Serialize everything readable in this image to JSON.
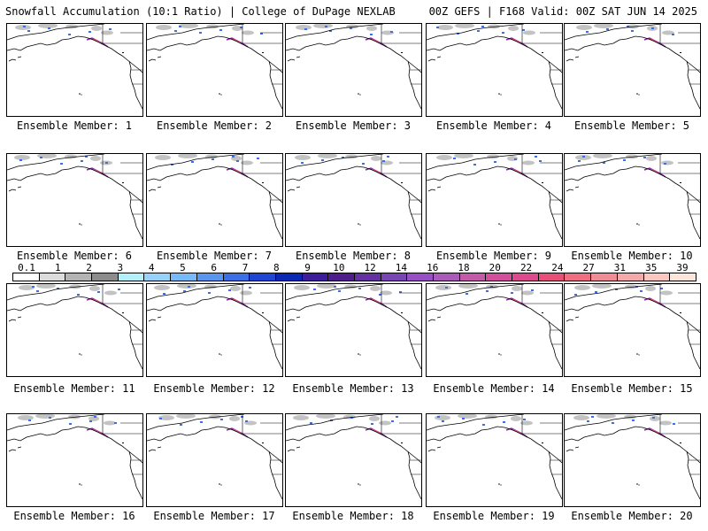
{
  "header": {
    "title_left": "Snowfall Accumulation (10:1 Ratio) | College of DuPage NEXLAB",
    "title_right": "00Z GEFS | F168 Valid: 00Z SAT JUN 14 2025"
  },
  "panels": [
    {
      "member": 1,
      "label": "Ensemble Member: 1"
    },
    {
      "member": 2,
      "label": "Ensemble Member: 2"
    },
    {
      "member": 3,
      "label": "Ensemble Member: 3"
    },
    {
      "member": 4,
      "label": "Ensemble Member: 4"
    },
    {
      "member": 5,
      "label": "Ensemble Member: 5"
    },
    {
      "member": 6,
      "label": "Ensemble Member: 6"
    },
    {
      "member": 7,
      "label": "Ensemble Member: 7"
    },
    {
      "member": 8,
      "label": "Ensemble Member: 8"
    },
    {
      "member": 9,
      "label": "Ensemble Member: 9"
    },
    {
      "member": 10,
      "label": "Ensemble Member: 10"
    },
    {
      "member": 11,
      "label": "Ensemble Member: 11"
    },
    {
      "member": 12,
      "label": "Ensemble Member: 12"
    },
    {
      "member": 13,
      "label": "Ensemble Member: 13"
    },
    {
      "member": 14,
      "label": "Ensemble Member: 14"
    },
    {
      "member": 15,
      "label": "Ensemble Member: 15"
    },
    {
      "member": 16,
      "label": "Ensemble Member: 16"
    },
    {
      "member": 17,
      "label": "Ensemble Member: 17"
    },
    {
      "member": 18,
      "label": "Ensemble Member: 18"
    },
    {
      "member": 19,
      "label": "Ensemble Member: 19"
    },
    {
      "member": 20,
      "label": "Ensemble Member: 20"
    }
  ],
  "colorbar": {
    "labels": [
      "0.1",
      "1",
      "2",
      "3",
      "4",
      "5",
      "6",
      "7",
      "8",
      "9",
      "10",
      "12",
      "14",
      "16",
      "18",
      "20",
      "22",
      "24",
      "27",
      "31",
      "35",
      "39"
    ],
    "colors": [
      "#ffffff",
      "#dcdcdc",
      "#b4b4b4",
      "#8c8c8c",
      "#b4f0fa",
      "#96d2fa",
      "#78b9fa",
      "#5a96f0",
      "#3c6ee6",
      "#1e46d2",
      "#0a28b4",
      "#3c1e9b",
      "#501e8c",
      "#6432a0",
      "#7846b4",
      "#9650c3",
      "#aa5ab9",
      "#c35aaa",
      "#d2509b",
      "#dc4b8c",
      "#e65078",
      "#f06e82",
      "#f08c96",
      "#f5aaaa",
      "#fac8be",
      "#fce6dc"
    ]
  },
  "map_colors": {
    "snow_gray": "#b4b4b4",
    "snow_blue": "#3c6ee6",
    "snow_purple": "#8c28aa",
    "snow_pink": "#e65078",
    "coast": "#000000"
  }
}
